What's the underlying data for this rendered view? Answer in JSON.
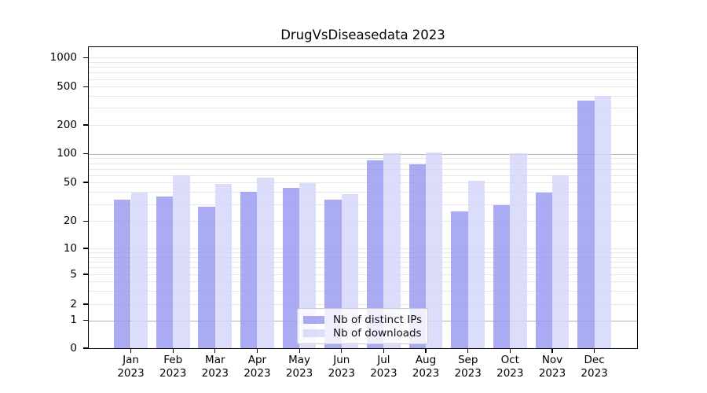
{
  "chart_data": {
    "type": "bar",
    "title": "DrugVsDiseasedata 2023",
    "categories": [
      "Jan 2023",
      "Feb 2023",
      "Mar 2023",
      "Apr 2023",
      "May 2023",
      "Jun 2023",
      "Jul 2023",
      "Aug 2023",
      "Sep 2023",
      "Oct 2023",
      "Nov 2023",
      "Dec 2023"
    ],
    "x_axis": {
      "month_labels": [
        "Jan",
        "Feb",
        "Mar",
        "Apr",
        "May",
        "Jun",
        "Jul",
        "Aug",
        "Sep",
        "Oct",
        "Nov",
        "Dec"
      ],
      "year_label": "2023"
    },
    "series": [
      {
        "name": "Nb of distinct IPs",
        "color": "rgba(150,150,240,0.8)",
        "values": [
          33,
          36,
          28,
          40,
          44,
          33,
          85,
          78,
          25,
          29,
          39,
          360
        ]
      },
      {
        "name": "Nb of downloads",
        "color": "rgba(211,211,250,0.8)",
        "values": [
          39,
          59,
          48,
          56,
          49,
          38,
          102,
          103,
          52,
          102,
          60,
          400
        ]
      }
    ],
    "y_axis": {
      "scale": "symlog",
      "tick_values": [
        0,
        1,
        2,
        5,
        10,
        20,
        50,
        100,
        200,
        500,
        1000
      ],
      "tick_labels": [
        "0",
        "1",
        "2",
        "5",
        "10",
        "20",
        "50",
        "100",
        "200",
        "500",
        "1000"
      ],
      "major_grid_values": [
        1,
        100
      ],
      "minor_grid_values": [
        2,
        3,
        4,
        5,
        6,
        7,
        8,
        9,
        10,
        20,
        30,
        40,
        50,
        60,
        70,
        80,
        90,
        200,
        300,
        400,
        500,
        600,
        700,
        800,
        900,
        1000
      ]
    },
    "legend": {
      "location": "lower center",
      "entries": [
        "Nb of distinct IPs",
        "Nb of downloads"
      ]
    },
    "grid": true
  },
  "colors": {
    "background": "#ffffff",
    "axis": "#000000",
    "major_grid": "#b2b2b2",
    "minor_grid": "#e7e7e7"
  }
}
